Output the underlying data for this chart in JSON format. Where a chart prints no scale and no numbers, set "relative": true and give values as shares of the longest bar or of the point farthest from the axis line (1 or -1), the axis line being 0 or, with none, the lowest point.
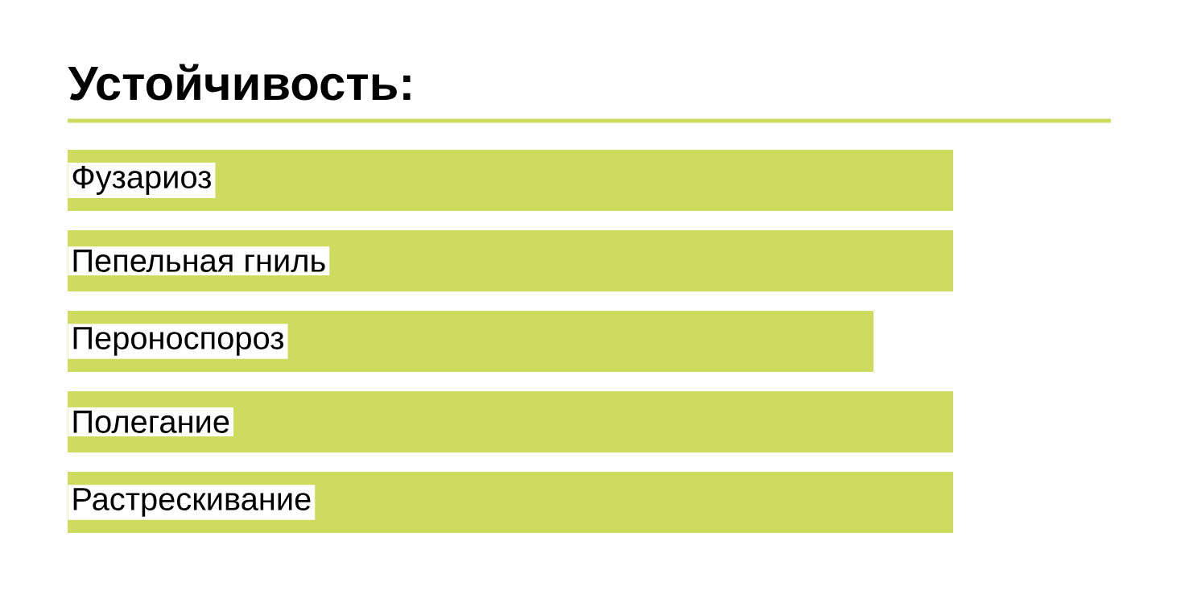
{
  "chart_data": {
    "type": "bar",
    "orientation": "horizontal",
    "relative": true,
    "title": "Устойчивость:",
    "categories": [
      "Фузариоз",
      "Пепельная гниль",
      "Пероноспороз",
      "Полегание",
      "Растрескивание"
    ],
    "values": [
      1,
      1,
      0.91,
      1,
      1
    ],
    "color": "#cddc5e"
  }
}
